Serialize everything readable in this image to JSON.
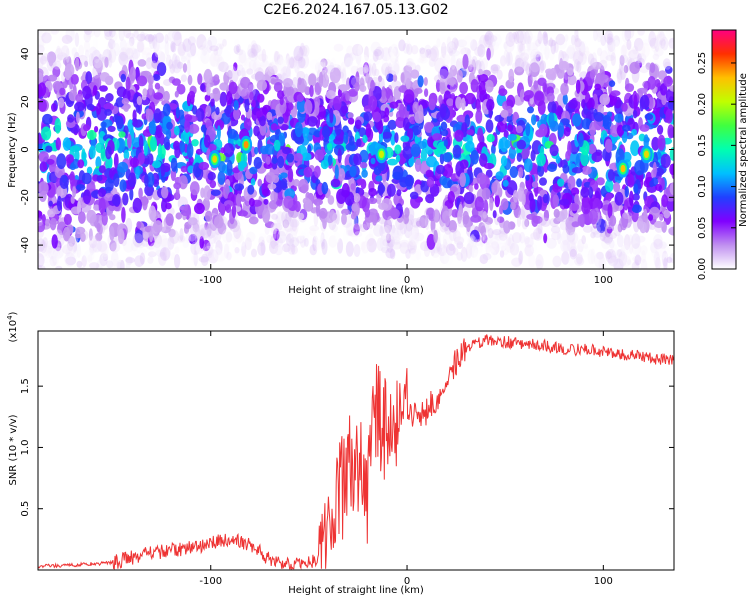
{
  "title": "C2E6.2024.167.05.13.G02",
  "chart_data": [
    {
      "type": "heatmap",
      "xlabel": "Height of straight line (km)",
      "ylabel": "Frequency (Hz)",
      "xlim": [
        -188,
        136
      ],
      "ylim": [
        -50,
        50
      ],
      "xticks": [
        -100,
        0,
        100
      ],
      "yticks": [
        -40,
        -20,
        0,
        20,
        40
      ],
      "colorbar": {
        "label": "Normalized spectral amplitude",
        "range": [
          0,
          0.29
        ],
        "ticks": [
          "0.00",
          "0.05",
          "0.10",
          "0.15",
          "0.20",
          "0.25"
        ],
        "colors": [
          "#ffffff",
          "#c090f0",
          "#8000ff",
          "#2040ff",
          "#00c0ff",
          "#00ffb0",
          "#40ff40",
          "#c0ff00",
          "#ffc000",
          "#ff3000",
          "#ff0080"
        ]
      },
      "description_points": [
        {
          "x": -98,
          "y": -4,
          "v": 0.22
        },
        {
          "x": -82,
          "y": 2,
          "v": 0.24
        },
        {
          "x": -13,
          "y": -2,
          "v": 0.21
        },
        {
          "x": 110,
          "y": -8,
          "v": 0.23
        },
        {
          "x": 122,
          "y": -2,
          "v": 0.22
        }
      ],
      "band_halfwidth_hz": [
        {
          "x": -188,
          "h": 46
        },
        {
          "x": -120,
          "h": 42
        },
        {
          "x": -60,
          "h": 36
        },
        {
          "x": 0,
          "h": 38
        },
        {
          "x": 60,
          "h": 42
        },
        {
          "x": 136,
          "h": 44
        }
      ]
    },
    {
      "type": "line",
      "xlabel": "Height of straight line (km)",
      "ylabel": "SNR (10 * v/v)",
      "multiplier": "(x10",
      "multiplier_exp": "4",
      "multiplier_close": ")",
      "xlim": [
        -188,
        136
      ],
      "ylim": [
        0,
        1.95
      ],
      "xticks": [
        -100,
        0,
        100
      ],
      "yticks": [
        0.5,
        1.0,
        1.5
      ],
      "ytick_labels": [
        "0.5",
        "1.0",
        "1.5"
      ],
      "color": "#ee3333",
      "series": [
        {
          "x": [
            -188,
            -170,
            -150,
            -140,
            -130,
            -120,
            -110,
            -100,
            -95,
            -90,
            -85,
            -80,
            -75,
            -70,
            -65,
            -60,
            -55,
            -50,
            -45,
            -42,
            -40,
            -38,
            -35,
            -32,
            -30,
            -28,
            -25,
            -22,
            -20,
            -18,
            -15,
            -12,
            -10,
            -8,
            -5,
            -2,
            0,
            5,
            10,
            15,
            20,
            25,
            30,
            35,
            40,
            45,
            50,
            60,
            70,
            80,
            90,
            100,
            110,
            120,
            130,
            136
          ],
          "y": [
            0.03,
            0.04,
            0.06,
            0.1,
            0.14,
            0.16,
            0.18,
            0.22,
            0.25,
            0.22,
            0.24,
            0.2,
            0.16,
            0.08,
            0.05,
            0.04,
            0.05,
            0.06,
            0.08,
            0.15,
            0.35,
            0.5,
            0.6,
            0.7,
            0.8,
            0.9,
            0.75,
            0.85,
            0.6,
            1.0,
            1.3,
            1.1,
            1.2,
            1.0,
            1.15,
            1.2,
            1.22,
            1.28,
            1.3,
            1.4,
            1.55,
            1.7,
            1.8,
            1.85,
            1.88,
            1.87,
            1.86,
            1.85,
            1.83,
            1.8,
            1.8,
            1.78,
            1.76,
            1.74,
            1.72,
            1.71
          ]
        }
      ]
    }
  ]
}
